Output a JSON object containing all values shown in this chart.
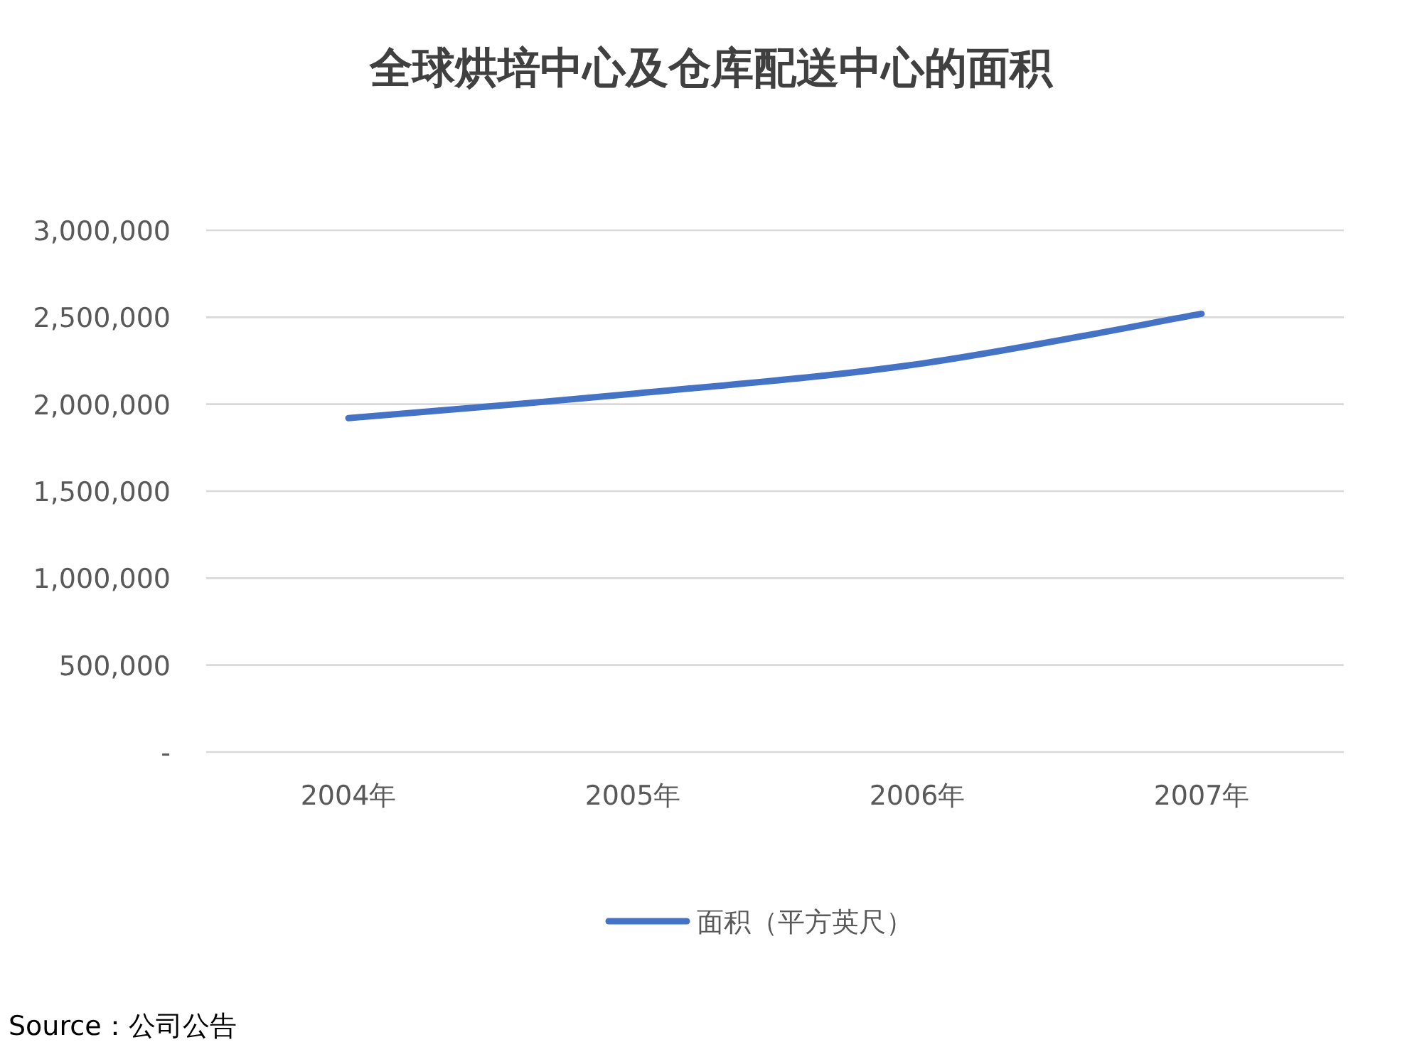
{
  "chart_data": {
    "type": "line",
    "title": "全球烘培中心及仓库配送中心的面积",
    "categories": [
      "2004年",
      "2005年",
      "2006年",
      "2007年"
    ],
    "series": [
      {
        "name": "面积（平方英尺）",
        "color": "#4472c4",
        "values": [
          1920000,
          2060000,
          2230000,
          2520000
        ]
      }
    ],
    "ylim": [
      0,
      3000000
    ],
    "yticks": [
      {
        "value": 0,
        "label": "-"
      },
      {
        "value": 500000,
        "label": "500,000"
      },
      {
        "value": 1000000,
        "label": "1,000,000"
      },
      {
        "value": 1500000,
        "label": "1,500,000"
      },
      {
        "value": 2000000,
        "label": "2,000,000"
      },
      {
        "value": 2500000,
        "label": "2,500,000"
      },
      {
        "value": 3000000,
        "label": "3,000,000"
      }
    ],
    "grid": "y",
    "legend": "bottom",
    "marker": "none",
    "line_style": "solid",
    "annotations": [
      "Source：公司公告"
    ]
  }
}
